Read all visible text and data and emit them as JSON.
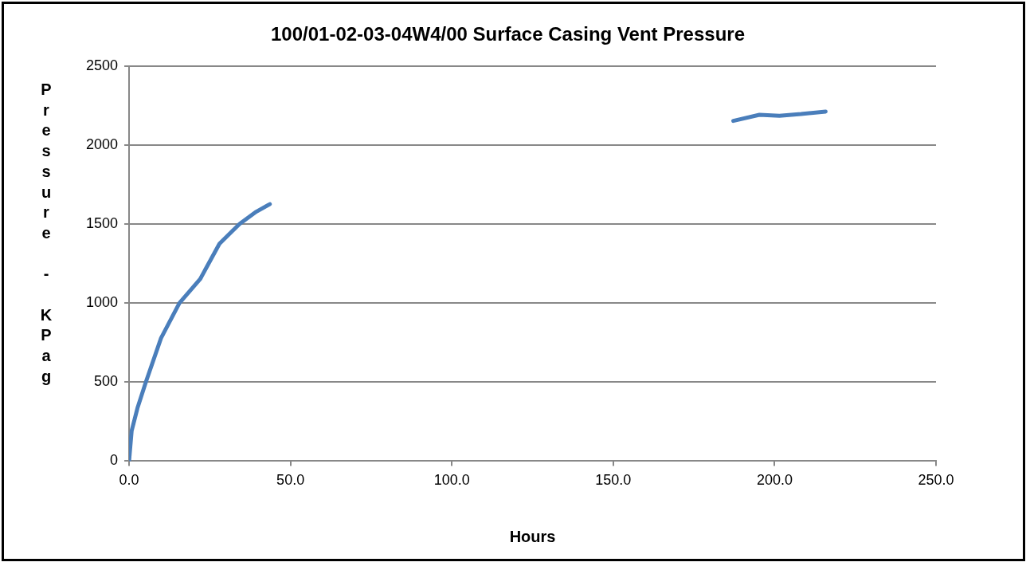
{
  "chart_data": {
    "type": "line",
    "title": "100/01-02-03-04W4/00 Surface Casing Vent Pressure",
    "xlabel": "Hours",
    "ylabel": "Pressure - KPag",
    "x": [
      0,
      0.8,
      2.6,
      5.2,
      9.9,
      15.6,
      22,
      28,
      34.2,
      39.4,
      43.6,
      null,
      187.2,
      195.3,
      201.5,
      208.2,
      215.8
    ],
    "series": [
      {
        "color": "#4a7ebb",
        "values": [
          0,
          192,
          336,
          500,
          778,
          1000,
          1151,
          1375,
          1500,
          1578,
          1626,
          null,
          2153,
          2191,
          2185,
          2196,
          2212
        ]
      }
    ],
    "xlim": [
      0,
      250
    ],
    "xticks": [
      {
        "value": 0,
        "label": "0.0"
      },
      {
        "value": 50,
        "label": "50.0"
      },
      {
        "value": 100,
        "label": "100.0"
      },
      {
        "value": 150,
        "label": "150.0"
      },
      {
        "value": 200,
        "label": "200.0"
      },
      {
        "value": 250,
        "label": "250.0"
      }
    ],
    "ylim": [
      0,
      2500
    ],
    "yticks": [
      0,
      500,
      1000,
      1500,
      2000,
      2500
    ],
    "grid": "y",
    "legend": false,
    "marker": "none",
    "line_style": "solid"
  }
}
